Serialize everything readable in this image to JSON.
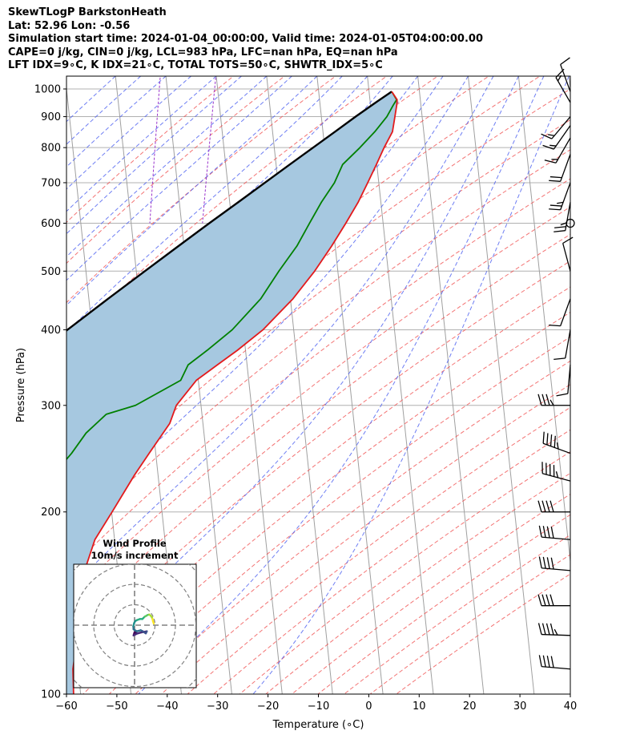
{
  "header": {
    "title": "SkewTLogP BarkstonHeath",
    "location": "Lat: 52.96   Lon: -0.56",
    "times": "Simulation start time: 2024-01-04_00:00:00, Valid time: 2024-01-05T04:00:00.00",
    "indices_1": "CAPE=0 j/kg, CIN=0 j/kg, LCL=983 hPa, LFC=nan hPa, EQ=nan hPa",
    "indices_2": "LFT IDX=9∘C, K IDX=21∘C, TOTAL TOTS=50∘C, SHWTR_IDX=5∘C"
  },
  "colors": {
    "temperature": "#e31a1c",
    "dewpoint": "#008000",
    "parcel": "#000000",
    "cape_fill": "#a6c8e0",
    "dry_adiabat": "#f05050",
    "moist_adiabat": "#4a5ef0",
    "mixing_ratio": "#9933cc",
    "isotherm": "#a0a0a0"
  },
  "chart_data": [
    {
      "type": "line",
      "title": "",
      "xlabel": "Temperature (∘C)",
      "ylabel": "Pressure (hPa)",
      "xlim": [
        -60,
        40
      ],
      "ylim": [
        1050,
        100
      ],
      "y_scale": "log",
      "skew": true,
      "grid": true,
      "x_ticks": [
        "−60",
        "−50",
        "−40",
        "−30",
        "−20",
        "−10",
        "0",
        "10",
        "20",
        "30",
        "40"
      ],
      "y_ticks": [
        "1000",
        "900",
        "800",
        "700",
        "600",
        "500",
        "400",
        "300",
        "200",
        "100"
      ],
      "y_tick_values": [
        1000,
        900,
        800,
        700,
        600,
        500,
        400,
        300,
        200,
        100
      ],
      "series": [
        {
          "key": "temperature",
          "pressure": [
            990,
            960,
            940,
            900,
            850,
            800,
            750,
            700,
            650,
            600,
            550,
            500,
            450,
            400,
            370,
            350,
            330,
            300,
            280,
            250,
            230,
            200,
            180,
            160,
            150,
            140,
            130,
            120,
            110,
            100
          ],
          "values": [
            4.5,
            5.4,
            5.2,
            4.6,
            3.8,
            1.8,
            -0.1,
            -2.2,
            -4.5,
            -7.4,
            -10.7,
            -14.6,
            -19.5,
            -26.1,
            -31.6,
            -35.9,
            -40.4,
            -44.9,
            -46.6,
            -51.3,
            -54.7,
            -59.9,
            -63.9,
            -66.6,
            -66.7,
            -67.5,
            -68.8,
            -69.9,
            -71.0,
            -71.4
          ]
        },
        {
          "key": "dewpoint",
          "pressure": [
            990,
            960,
            940,
            900,
            850,
            800,
            750,
            700,
            650,
            600,
            550,
            500,
            450,
            400,
            370,
            350,
            330,
            300,
            290,
            270,
            250,
            230,
            200,
            180,
            160,
            140,
            120,
            100
          ],
          "values": [
            4.5,
            5.3,
            4.5,
            3.0,
            0.3,
            -3.0,
            -6.8,
            -8.8,
            -11.8,
            -14.6,
            -17.6,
            -21.7,
            -25.9,
            -32.2,
            -37.6,
            -41.7,
            -43.5,
            -53.0,
            -59.0,
            -63.4,
            -66.7,
            -70.9,
            -77.4,
            -79.3,
            -79.4,
            -81.4,
            -84.9,
            -88.8
          ]
        },
        {
          "key": "parcel",
          "pressure": [
            990,
            950,
            900,
            850,
            800,
            750,
            700,
            650,
            600,
            550,
            500,
            450,
            400,
            350,
            300,
            250,
            200,
            150,
            100
          ],
          "values": [
            4.5,
            1.1,
            -3.2,
            -7.6,
            -12.3,
            -17.3,
            -22.6,
            -28.3,
            -34.5,
            -41.1,
            -48.3,
            -56.2,
            -64.9,
            -74.4,
            -84.9,
            -96.7,
            -110.1,
            -126.3,
            -147.4
          ]
        }
      ]
    },
    {
      "type": "line",
      "title": "Wind Profile\n10m/s increment",
      "xlabel": "",
      "ylabel": "",
      "grid": true,
      "rings_ms": [
        10,
        20,
        30,
        40
      ],
      "series": [
        {
          "key": "hodograph",
          "u": [
            0.5,
            1.0,
            0.0,
            -0.5,
            1.0,
            3.0,
            6.0,
            5.5,
            4.0,
            3.0,
            1.0,
            -0.5,
            -0.6,
            -0.2,
            0.3,
            1.2,
            2.6,
            3.8,
            5.0,
            5.6,
            6.4,
            7.2,
            7.8,
            8.4,
            8.8,
            9.0,
            9.4
          ],
          "v": [
            -4.5,
            -3.0,
            -3.5,
            -5.0,
            -4.2,
            -3.6,
            -3.0,
            -4.0,
            -3.0,
            -2.5,
            -3.0,
            -2.0,
            -0.5,
            1.0,
            2.0,
            2.5,
            3.0,
            3.0,
            4.2,
            4.5,
            5.0,
            5.2,
            4.7,
            4.0,
            3.0,
            2.0,
            0.8
          ]
        }
      ]
    }
  ],
  "wind_barbs": [
    {
      "p": 110,
      "speed_kt": 40,
      "dir": 275
    },
    {
      "p": 125,
      "speed_kt": 45,
      "dir": 272
    },
    {
      "p": 140,
      "speed_kt": 40,
      "dir": 270
    },
    {
      "p": 160,
      "speed_kt": 40,
      "dir": 275
    },
    {
      "p": 180,
      "speed_kt": 40,
      "dir": 275
    },
    {
      "p": 200,
      "speed_kt": 40,
      "dir": 270
    },
    {
      "p": 225,
      "speed_kt": 45,
      "dir": 285
    },
    {
      "p": 250,
      "speed_kt": 45,
      "dir": 290
    },
    {
      "p": 300,
      "speed_kt": 35,
      "dir": 270
    },
    {
      "p": 350,
      "speed_kt": 10,
      "dir": 185
    },
    {
      "p": 400,
      "speed_kt": 10,
      "dir": 190
    },
    {
      "p": 450,
      "speed_kt": 10,
      "dir": 200
    },
    {
      "p": 500,
      "speed_kt": 10,
      "dir": 345
    },
    {
      "p": 600,
      "speed_kt": 0,
      "dir": 0
    },
    {
      "p": 650,
      "speed_kt": 25,
      "dir": 190
    },
    {
      "p": 700,
      "speed_kt": 25,
      "dir": 200
    },
    {
      "p": 780,
      "speed_kt": 20,
      "dir": 200
    },
    {
      "p": 830,
      "speed_kt": 15,
      "dir": 210
    },
    {
      "p": 870,
      "speed_kt": 15,
      "dir": 215
    },
    {
      "p": 900,
      "speed_kt": 15,
      "dir": 220
    },
    {
      "p": 950,
      "speed_kt": 15,
      "dir": 330
    },
    {
      "p": 990,
      "speed_kt": 10,
      "dir": 340
    }
  ]
}
